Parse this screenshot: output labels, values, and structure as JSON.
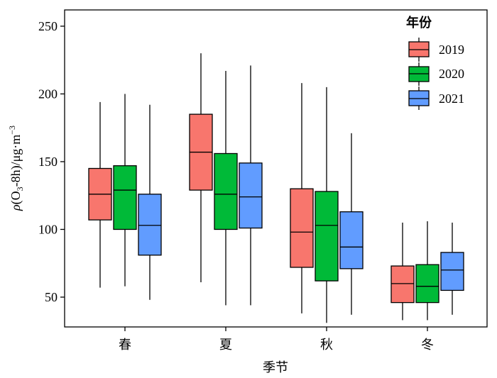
{
  "chart_data": {
    "type": "box",
    "xlabel": "季节",
    "ylabel": {
      "rho": "ρ",
      "paren_open": "(O",
      "sub3": "3",
      "mid": "-8h)/μg·m",
      "sup": "−3"
    },
    "ylim": [
      28,
      262
    ],
    "yticks": [
      50,
      100,
      150,
      200,
      250
    ],
    "categories": [
      "春",
      "夏",
      "秋",
      "冬"
    ],
    "legend": {
      "title": "年份",
      "position": "top-right"
    },
    "colors": {
      "2019": "#f8766d",
      "2020": "#00ba38",
      "2021": "#619cff"
    },
    "series": [
      {
        "name": "2019",
        "boxes": [
          {
            "min": 57,
            "q1": 107,
            "median": 126,
            "q3": 145,
            "max": 194
          },
          {
            "min": 61,
            "q1": 129,
            "median": 157,
            "q3": 185,
            "max": 230
          },
          {
            "min": 38,
            "q1": 72,
            "median": 98,
            "q3": 130,
            "max": 208
          },
          {
            "min": 33,
            "q1": 46,
            "median": 60,
            "q3": 73,
            "max": 105
          }
        ]
      },
      {
        "name": "2020",
        "boxes": [
          {
            "min": 58,
            "q1": 100,
            "median": 129,
            "q3": 147,
            "max": 200
          },
          {
            "min": 44,
            "q1": 100,
            "median": 126,
            "q3": 156,
            "max": 217
          },
          {
            "min": 31,
            "q1": 62,
            "median": 103,
            "q3": 128,
            "max": 205
          },
          {
            "min": 33,
            "q1": 46,
            "median": 58,
            "q3": 74,
            "max": 106
          }
        ]
      },
      {
        "name": "2021",
        "boxes": [
          {
            "min": 48,
            "q1": 81,
            "median": 103,
            "q3": 126,
            "max": 192
          },
          {
            "min": 44,
            "q1": 101,
            "median": 124,
            "q3": 149,
            "max": 221
          },
          {
            "min": 37,
            "q1": 71,
            "median": 87,
            "q3": 113,
            "max": 171
          },
          {
            "min": 37,
            "q1": 55,
            "median": 70,
            "q3": 83,
            "max": 105
          }
        ]
      }
    ]
  }
}
